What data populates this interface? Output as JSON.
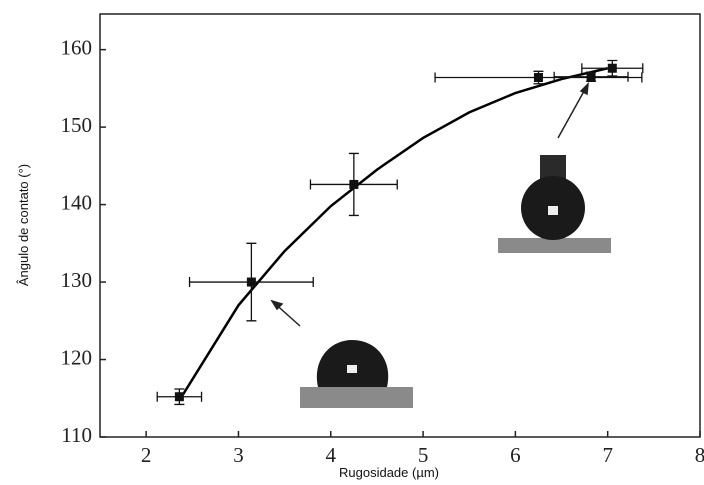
{
  "chart_data": {
    "type": "scatter",
    "x_label": "Rugosidade (µm)",
    "y_label": "Ângulo de contato (°)",
    "xlim": [
      1.5,
      8
    ],
    "ylim": [
      110,
      164.6
    ],
    "xticks": [
      2,
      3,
      4,
      5,
      6,
      7,
      8
    ],
    "yticks": [
      110,
      120,
      130,
      140,
      150,
      160
    ],
    "series": [
      {
        "color": "#111111",
        "x": [
          2.36,
          3.14,
          4.25,
          6.25,
          6.82,
          7.05
        ],
        "values": [
          115.2,
          130.0,
          142.6,
          156.4,
          156.5,
          157.6
        ],
        "x_err": [
          0.24,
          0.67,
          0.47,
          1.12,
          0.4,
          0.33
        ],
        "y_err": [
          1.0,
          5.0,
          4.0,
          0.8,
          0.6,
          1.0
        ]
      }
    ],
    "fit": {
      "color": "#000000",
      "x": [
        2.4,
        3.0,
        3.5,
        4.0,
        4.5,
        5.0,
        5.5,
        6.0,
        6.5,
        7.0
      ],
      "values": [
        115.5,
        127.0,
        134.0,
        139.8,
        144.5,
        148.6,
        151.9,
        154.4,
        156.2,
        157.6
      ]
    }
  }
}
